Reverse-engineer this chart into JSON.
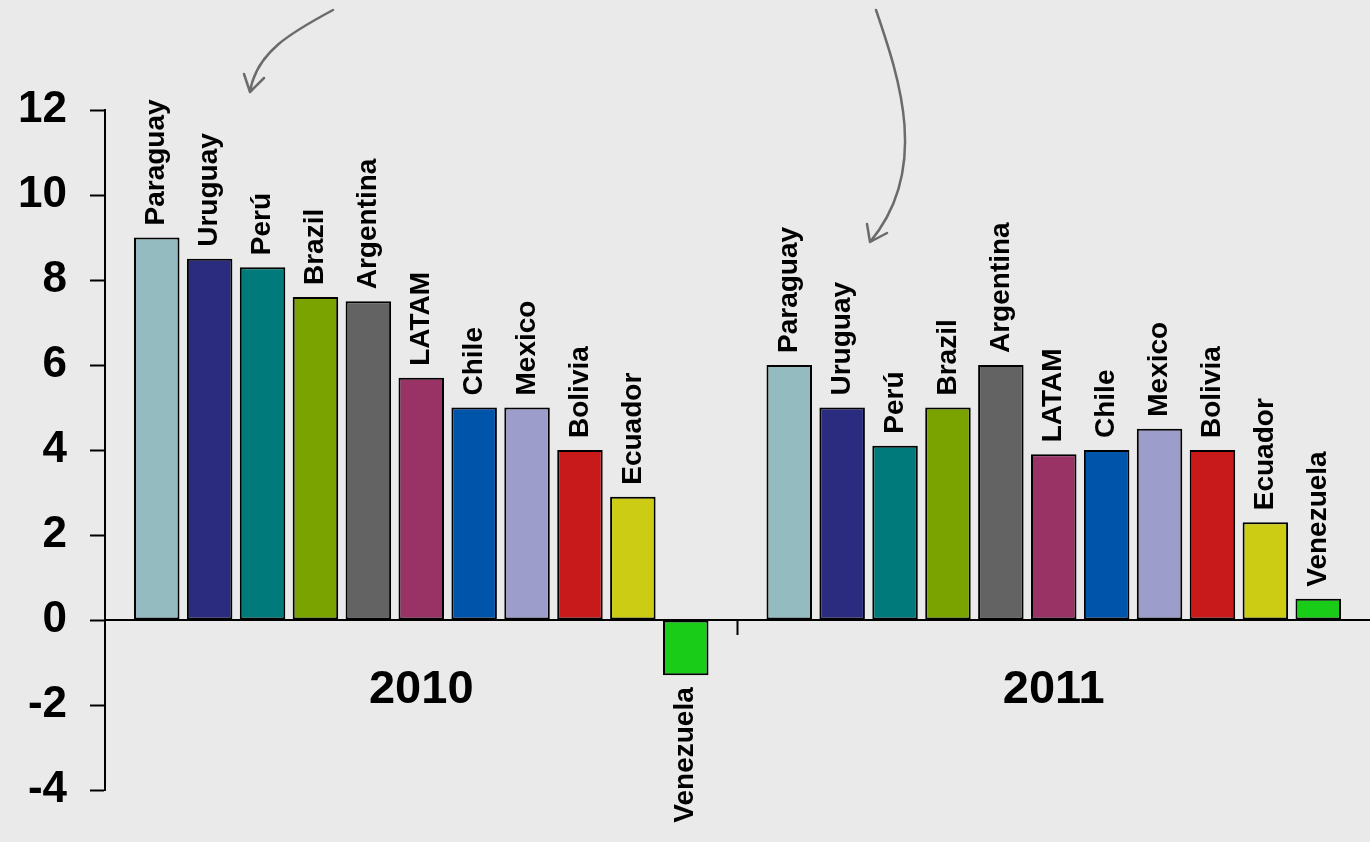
{
  "chart_data": {
    "type": "bar",
    "categories": [
      "2010",
      "2011"
    ],
    "series": [
      {
        "name": "Paraguay",
        "color": "#94bcc0",
        "values": [
          9.0,
          6.0
        ]
      },
      {
        "name": "Uruguay",
        "color": "#2b2b80",
        "values": [
          8.5,
          5.0
        ]
      },
      {
        "name": "Perú",
        "color": "#007a7a",
        "values": [
          8.3,
          4.1
        ]
      },
      {
        "name": "Brazil",
        "color": "#7aa300",
        "values": [
          7.6,
          5.0
        ]
      },
      {
        "name": "Argentina",
        "color": "#636363",
        "values": [
          7.5,
          6.0
        ]
      },
      {
        "name": "LATAM",
        "color": "#993366",
        "values": [
          5.7,
          3.9
        ]
      },
      {
        "name": "Chile",
        "color": "#0055aa",
        "values": [
          5.0,
          4.0
        ]
      },
      {
        "name": "Mexico",
        "color": "#9d9dcc",
        "values": [
          5.0,
          4.5
        ]
      },
      {
        "name": "Bolivia",
        "color": "#c81a1a",
        "values": [
          4.0,
          4.0
        ]
      },
      {
        "name": "Ecuador",
        "color": "#cccc14",
        "values": [
          2.9,
          2.3
        ]
      },
      {
        "name": "Venezuela",
        "color": "#18cc18",
        "values": [
          -1.3,
          0.5
        ]
      }
    ],
    "ylim": [
      -4,
      12
    ],
    "yticks": [
      -4,
      -2,
      0,
      2,
      4,
      6,
      8,
      10,
      12
    ]
  }
}
